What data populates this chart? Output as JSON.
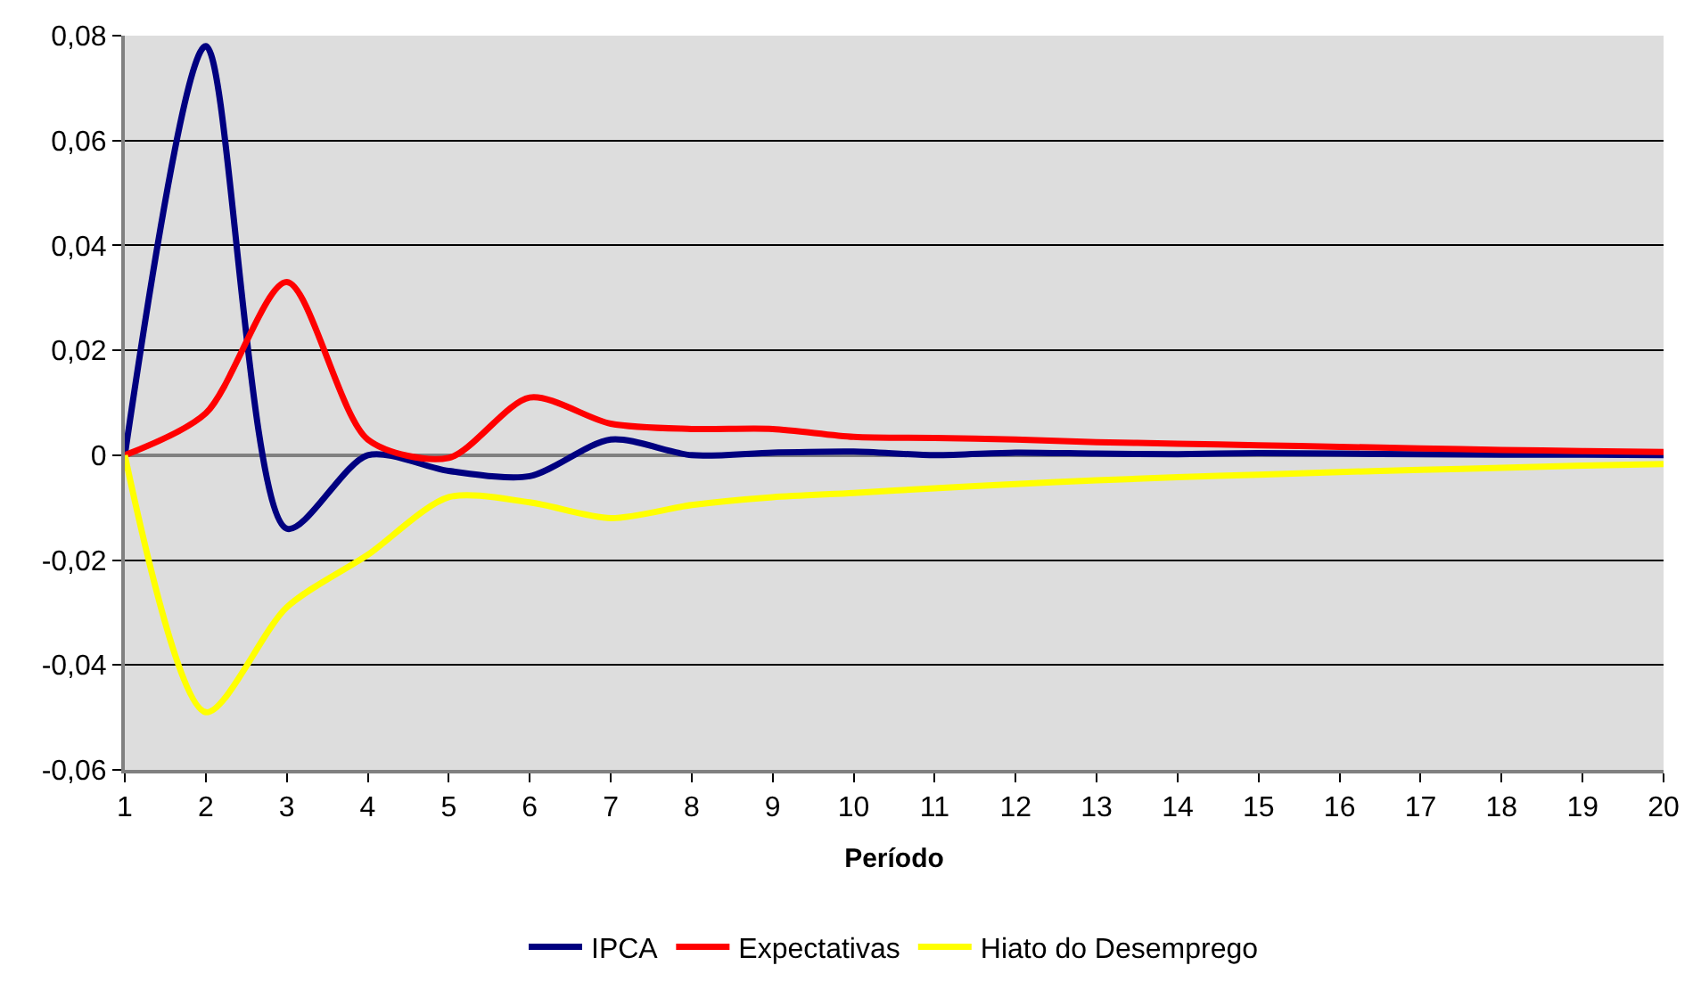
{
  "chart_data": {
    "type": "line",
    "xlabel": "Período",
    "x": [
      1,
      2,
      3,
      4,
      5,
      6,
      7,
      8,
      9,
      10,
      11,
      12,
      13,
      14,
      15,
      16,
      17,
      18,
      19,
      20
    ],
    "series": [
      {
        "name": "IPCA",
        "color": "#000080",
        "values": [
          0,
          0.078,
          -0.014,
          0,
          -0.003,
          -0.004,
          0.003,
          0,
          0.0005,
          0.0007,
          0,
          0.0005,
          0.0003,
          0.0002,
          0.0004,
          0.0003,
          0.0002,
          0.0001,
          0.0001,
          0
        ]
      },
      {
        "name": "Expectativas",
        "color": "#ff0000",
        "values": [
          0,
          0.008,
          0.033,
          0.003,
          -0.0005,
          0.011,
          0.006,
          0.005,
          0.005,
          0.0035,
          0.0033,
          0.003,
          0.0025,
          0.0022,
          0.0019,
          0.0016,
          0.0013,
          0.001,
          0.0008,
          0.0006
        ]
      },
      {
        "name": "Hiato do Desemprego",
        "color": "#ffff00",
        "values": [
          0,
          -0.049,
          -0.029,
          -0.019,
          -0.008,
          -0.009,
          -0.012,
          -0.0095,
          -0.008,
          -0.0072,
          -0.0063,
          -0.0055,
          -0.0048,
          -0.0042,
          -0.0037,
          -0.0032,
          -0.0028,
          -0.0024,
          -0.002,
          -0.0017
        ]
      }
    ],
    "xlim": [
      1,
      20
    ],
    "xticks": [
      1,
      2,
      3,
      4,
      5,
      6,
      7,
      8,
      9,
      10,
      11,
      12,
      13,
      14,
      15,
      16,
      17,
      18,
      19,
      20
    ],
    "ylim": [
      -0.06,
      0.08
    ],
    "yticks": [
      {
        "value": -0.06,
        "label": "-0,06"
      },
      {
        "value": -0.04,
        "label": "-0,04"
      },
      {
        "value": -0.02,
        "label": "-0,02"
      },
      0,
      {
        "value": 0.02,
        "label": "0,02"
      },
      {
        "value": 0.04,
        "label": "0,04"
      },
      {
        "value": 0.06,
        "label": "0,06"
      },
      {
        "value": 0.08,
        "label": "0,08"
      }
    ],
    "grid": "y",
    "legend": "bottom",
    "marker": "none",
    "line_style": "solid"
  }
}
